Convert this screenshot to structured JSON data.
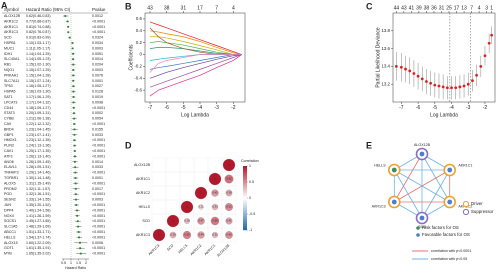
{
  "chart_data": [
    {
      "type": "forest",
      "panel": "A",
      "headers": [
        "Symbol",
        "Hazard Ratio (95% CI)",
        "Pvalue"
      ],
      "x_label": "Hazard Ratio",
      "symbols": [
        "ALOX12B",
        "AKR1C2",
        "AKR1C1",
        "AKR1C3",
        "SCD",
        "HSPB1",
        "MUC1",
        "IDH1",
        "SLC40A1",
        "RB1",
        "NQO1",
        "PRKAA1",
        "SLC7A11",
        "TP53",
        "HSPA5",
        "SAT1",
        "LPCAT3",
        "CD44",
        "STAT3",
        "CYBB",
        "CA9",
        "BRD4",
        "GBP1",
        "HMOX1",
        "PLIN2",
        "CAV1",
        "ATF3",
        "ANO6",
        "ELAVL1",
        "TNFAIP3",
        "TGFBR1",
        "ALOX5",
        "PROM2",
        "PGD",
        "SESN2",
        "JUN",
        "DPP4",
        "NOX4",
        "SOCS1",
        "SLC1A5",
        "ABCC1",
        "HELLS",
        "ALOX15",
        "GOT1",
        "MYB"
      ],
      "hr": [
        0.62,
        0.77,
        0.81,
        0.82,
        0.91,
        1.1,
        1.11,
        1.14,
        1.14,
        1.15,
        1.15,
        1.15,
        1.15,
        1.16,
        1.16,
        1.17,
        1.17,
        1.18,
        1.2,
        1.21,
        1.22,
        1.23,
        1.23,
        1.23,
        1.24,
        1.25,
        1.26,
        1.26,
        1.28,
        1.29,
        1.3,
        1.31,
        1.32,
        1.32,
        1.33,
        1.35,
        1.4,
        1.41,
        1.45,
        1.48,
        1.51,
        1.54,
        1.6,
        1.61,
        1.65
      ],
      "lower": [
        0.46,
        0.68,
        0.74,
        0.76,
        0.83,
        1.03,
        1.05,
        1.04,
        1.05,
        1.02,
        1.07,
        1.04,
        1.07,
        1.05,
        1.03,
        1.06,
        1.04,
        1.09,
        1.09,
        1.06,
        1.12,
        1.04,
        1.07,
        1.12,
        1.13,
        1.17,
        1.13,
        1.09,
        1.09,
        1.14,
        1.14,
        1.15,
        1.11,
        1.16,
        1.14,
        1.2,
        1.24,
        1.26,
        1.27,
        1.29,
        1.33,
        1.37,
        1.22,
        1.35,
        1.35
      ],
      "upper": [
        0.83,
        0.87,
        0.88,
        0.87,
        0.99,
        1.17,
        1.17,
        1.25,
        1.23,
        1.3,
        1.25,
        1.28,
        1.24,
        1.27,
        1.3,
        1.29,
        1.32,
        1.27,
        1.31,
        1.38,
        1.32,
        1.45,
        1.41,
        1.35,
        1.36,
        1.35,
        1.4,
        1.45,
        1.51,
        1.46,
        1.48,
        1.49,
        1.57,
        1.51,
        1.55,
        1.52,
        1.58,
        1.59,
        1.65,
        1.69,
        1.71,
        1.74,
        2.09,
        1.91,
        2.02
      ],
      "ci_labels": [
        "0.62(0.46-0.83)",
        "0.77(0.68-0.87)",
        "0.81(0.74-0.88)",
        "0.82(0.76-0.87)",
        "0.91(0.83-0.99)",
        "1.10(1.03-1.17)",
        "1.11(1.05-1.17)",
        "1.14(1.04-1.25)",
        "1.14(1.05-1.23)",
        "1.15(1.02-1.30)",
        "1.15(1.07-1.25)",
        "1.15(1.04-1.28)",
        "1.15(1.07-1.24)",
        "1.16(1.05-1.27)",
        "1.16(1.03-1.30)",
        "1.17(1.06-1.29)",
        "1.17(1.04-1.32)",
        "1.18(1.09-1.27)",
        "1.20(1.09-1.31)",
        "1.21(1.06-1.38)",
        "1.22(1.12-1.32)",
        "1.23(1.04-1.45)",
        "1.23(1.07-1.41)",
        "1.23(1.12-1.35)",
        "1.24(1.13-1.36)",
        "1.25(1.17-1.35)",
        "1.26(1.13-1.40)",
        "1.26(1.09-1.45)",
        "1.28(1.09-1.51)",
        "1.29(1.14-1.46)",
        "1.30(1.14-1.48)",
        "1.31(1.15-1.49)",
        "1.32(1.11-1.57)",
        "1.32(1.16-1.51)",
        "1.33(1.14-1.55)",
        "1.35(1.20-1.52)",
        "1.40(1.24-1.58)",
        "1.41(1.26-1.59)",
        "1.45(1.27-1.65)",
        "1.48(1.29-1.69)",
        "1.51(1.33-1.71)",
        "1.54(1.37-1.74)",
        "1.60(1.22-2.09)",
        "1.61(1.35-1.91)",
        "1.65(1.35-2.02)"
      ],
      "pvalues": [
        "0.0012",
        "<0.0001",
        "<0.0001",
        "<0.0001",
        "0.0324",
        "0.0034",
        "0.0003",
        "0.0051",
        "0.0014",
        "0.0204",
        "0.0003",
        "0.0076",
        "0.0001",
        "0.0027",
        "0.0128",
        "0.0019",
        "0.0098",
        "<0.0001",
        "0.0002",
        "0.0054",
        "<0.0001",
        "0.0155",
        "0.0033",
        "<0.0001",
        "<0.0001",
        "<0.0001",
        "<0.0001",
        "0.0014",
        "0.0033",
        "<0.0001",
        "0.0001",
        "<0.0001",
        "0.0017",
        "<0.0001",
        "0.0003",
        "<0.0001",
        "<0.0001",
        "<0.0001",
        "<0.0001",
        "<0.0001",
        "<0.0001",
        "<0.0001",
        "0.0006",
        "<0.0001",
        "<0.0001"
      ],
      "ref_line": 1,
      "xlim": [
        0.4,
        2.2
      ],
      "xticks": [
        0.5,
        1,
        1.5,
        2
      ],
      "color": "#2e7d32"
    },
    {
      "type": "line",
      "panel": "B",
      "x_label": "Log Lambda",
      "y_label": "Coefficients",
      "x": [
        -7,
        -6.5,
        -6,
        -5,
        -4,
        -3,
        -2,
        -1.5
      ],
      "series": [
        {
          "color": "#e41a1c",
          "values": [
            0.55,
            0.5,
            0.45,
            0.35,
            0.25,
            0.15,
            0.05,
            0
          ]
        },
        {
          "color": "#ff7f00",
          "values": [
            0.4,
            0.38,
            0.35,
            0.3,
            0.22,
            0.12,
            0.03,
            0
          ]
        },
        {
          "color": "#c9b200",
          "values": [
            0.3,
            0.3,
            0.28,
            0.22,
            0.15,
            0.08,
            0,
            0
          ]
        },
        {
          "color": "#4daf4a",
          "values": [
            0.2,
            0.22,
            0.2,
            0.16,
            0.1,
            0.04,
            0,
            0
          ]
        },
        {
          "color": "#1b9e77",
          "values": [
            0.1,
            0.12,
            0.12,
            0.1,
            0.06,
            0.02,
            0,
            0
          ]
        },
        {
          "color": "#a65628",
          "values": [
            0.45,
            0.3,
            0.2,
            0.1,
            0.04,
            0,
            0,
            0
          ]
        },
        {
          "color": "#17becf",
          "values": [
            -0.1,
            -0.08,
            -0.06,
            -0.03,
            0,
            0,
            0,
            0
          ]
        },
        {
          "color": "#377eb8",
          "values": [
            -0.25,
            -0.22,
            -0.2,
            -0.15,
            -0.1,
            -0.05,
            0,
            0
          ]
        },
        {
          "color": "#6a3d9a",
          "values": [
            -0.4,
            -0.35,
            -0.3,
            -0.22,
            -0.15,
            -0.08,
            -0.02,
            0
          ]
        },
        {
          "color": "#984ea3",
          "values": [
            -0.55,
            -0.5,
            -0.45,
            -0.35,
            -0.25,
            -0.15,
            -0.05,
            0
          ]
        },
        {
          "color": "#f781bf",
          "values": [
            -0.3,
            -0.15,
            -0.1,
            -0.05,
            0,
            0,
            0,
            0
          ]
        },
        {
          "color": "#e7298a",
          "values": [
            -0.7,
            -0.6,
            -0.55,
            -0.45,
            -0.35,
            -0.22,
            -0.1,
            0
          ]
        }
      ],
      "xlim": [
        -7.3,
        -1.3
      ],
      "xticks": [
        -7,
        -6,
        -5,
        -4,
        -3,
        -2
      ],
      "ylim": [
        -0.8,
        0.7
      ],
      "yticks": [
        -0.6,
        -0.4,
        -0.2,
        0,
        0.2,
        0.4,
        0.6
      ],
      "top_ticks": [
        {
          "value": -7,
          "label": "43"
        },
        {
          "value": -6,
          "label": "38"
        },
        {
          "value": -5,
          "label": "31"
        },
        {
          "value": -4,
          "label": "17"
        },
        {
          "value": -3,
          "label": "7"
        },
        {
          "value": -2,
          "label": "4"
        }
      ]
    },
    {
      "type": "errorbar",
      "panel": "C",
      "x_label": "Log Lambda",
      "y_label": "Partial Likelihood Deviance",
      "x": [
        -7.3,
        -7.0,
        -6.75,
        -6.5,
        -6.25,
        -6.0,
        -5.75,
        -5.5,
        -5.25,
        -5.0,
        -4.75,
        -4.5,
        -4.25,
        -4.0,
        -3.75,
        -3.5,
        -3.25,
        -3.0,
        -2.75,
        -2.5,
        -2.25,
        -2.0,
        -1.75,
        -1.6
      ],
      "y": [
        13.4,
        13.39,
        13.37,
        13.35,
        13.32,
        13.29,
        13.26,
        13.23,
        13.21,
        13.19,
        13.18,
        13.17,
        13.16,
        13.16,
        13.16,
        13.17,
        13.18,
        13.2,
        13.24,
        13.3,
        13.4,
        13.52,
        13.66,
        13.75
      ],
      "err": [
        0.16,
        0.16,
        0.15,
        0.15,
        0.15,
        0.15,
        0.14,
        0.14,
        0.14,
        0.14,
        0.14,
        0.14,
        0.13,
        0.13,
        0.13,
        0.13,
        0.13,
        0.13,
        0.12,
        0.12,
        0.12,
        0.11,
        0.11,
        0.1
      ],
      "color": "#e02020",
      "err_color": "#999999",
      "vlines": [
        -4.1,
        -2.85
      ],
      "xlim": [
        -7.5,
        -1.4
      ],
      "xticks": [
        -7,
        -6,
        -5,
        -4,
        -3,
        -2
      ],
      "ylim": [
        13.0,
        14.0
      ],
      "yticks": [
        13.2,
        13.4,
        13.6,
        13.8
      ],
      "top_ticks": [
        {
          "value": -7.3,
          "label": "44"
        },
        {
          "value": -6.85,
          "label": "43"
        },
        {
          "value": -6.4,
          "label": "41"
        },
        {
          "value": -5.95,
          "label": "39"
        },
        {
          "value": -5.5,
          "label": "38"
        },
        {
          "value": -5.05,
          "label": "36"
        },
        {
          "value": -4.6,
          "label": "31"
        },
        {
          "value": -4.15,
          "label": "25"
        },
        {
          "value": -3.7,
          "label": "17"
        },
        {
          "value": -3.25,
          "label": "13"
        },
        {
          "value": -2.8,
          "label": "7"
        },
        {
          "value": -2.35,
          "label": "4"
        },
        {
          "value": -1.9,
          "label": "3"
        },
        {
          "value": -1.6,
          "label": "1"
        }
      ]
    },
    {
      "type": "corrdot",
      "panel": "D",
      "legend_title": "Correlation",
      "row_labels": [
        "ALOX12B",
        "AKR1C1",
        "AKR1C2",
        "HELLS",
        "SCD",
        "AKR1C3"
      ],
      "col_labels": [
        "AKR1C3",
        "SCD",
        "HELLS",
        "AKR1C2",
        "AKR1C1",
        "ALOX12B"
      ],
      "matrix": [
        [
          null,
          null,
          null,
          null,
          null,
          1
        ],
        [
          null,
          null,
          null,
          null,
          1,
          0.62
        ],
        [
          null,
          null,
          null,
          1,
          0.45,
          0.38
        ],
        [
          null,
          null,
          1,
          0.21,
          0.33,
          0.52
        ],
        [
          null,
          1,
          0.28,
          0.47,
          0.58,
          0.41
        ],
        [
          1,
          0.36,
          0.55,
          0.44,
          0.31,
          0.49
        ]
      ],
      "colors": [
        "#2166ac",
        "#ffffff",
        "#b2182b"
      ],
      "clim": [
        -1,
        1
      ],
      "cticks": [
        -1,
        -0.5,
        0,
        0.5,
        1
      ]
    },
    {
      "type": "network",
      "panel": "E",
      "nodes": [
        {
          "label": "ALOX12B",
          "role": 1,
          "os": 1
        },
        {
          "label": "AKR1C1",
          "role": 0,
          "os": 1
        },
        {
          "label": "AKR1C2",
          "role": 0,
          "os": 1
        },
        {
          "label": "SCD",
          "role": 1,
          "os": 1
        },
        {
          "label": "AKR1C3",
          "role": 0,
          "os": 1
        },
        {
          "label": "HELLS",
          "role": 0,
          "os": 0
        }
      ],
      "edges": [
        {
          "source": 0,
          "target": 1,
          "level": 1
        },
        {
          "source": 0,
          "target": 2,
          "level": 1
        },
        {
          "source": 0,
          "target": 3,
          "level": 1
        },
        {
          "source": 0,
          "target": 4,
          "level": 0
        },
        {
          "source": 0,
          "target": 5,
          "level": 1
        },
        {
          "source": 1,
          "target": 2,
          "level": 0
        },
        {
          "source": 1,
          "target": 3,
          "level": 1
        },
        {
          "source": 1,
          "target": 4,
          "level": 0
        },
        {
          "source": 1,
          "target": 5,
          "level": 1
        },
        {
          "source": 2,
          "target": 3,
          "level": 1
        },
        {
          "source": 2,
          "target": 4,
          "level": 0
        },
        {
          "source": 2,
          "target": 5,
          "level": 1
        },
        {
          "source": 3,
          "target": 4,
          "level": 1
        },
        {
          "source": 3,
          "target": 5,
          "level": 1
        },
        {
          "source": 4,
          "target": 5,
          "level": 1
        }
      ],
      "roles": [
        {
          "name": "Driver",
          "color": "#f0a030"
        },
        {
          "name": "Suppressor",
          "color": "#8a6fc0"
        }
      ],
      "os_types": [
        {
          "name": "Risk factors for OS",
          "color": "#3a8f5a"
        },
        {
          "name": "Favorable factors for OS",
          "color": "#4a7fd0"
        }
      ],
      "edge_levels": [
        {
          "name": "correlation with p<0.0001",
          "color": "#e57373"
        },
        {
          "name": "correlation with p<0.05",
          "color": "#6fb3e8"
        }
      ]
    }
  ]
}
